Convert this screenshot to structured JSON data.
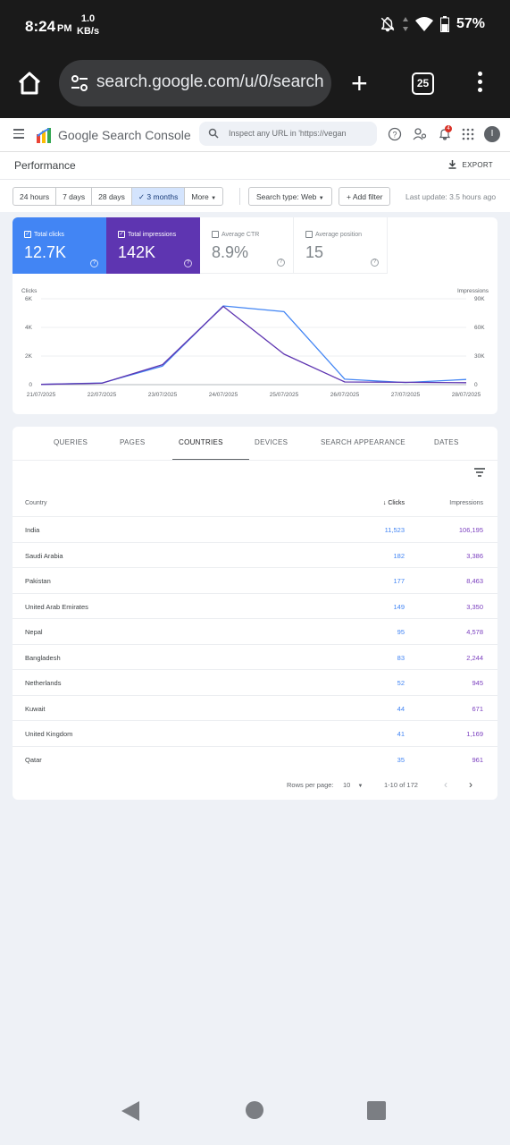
{
  "status_bar": {
    "time": "8:24",
    "ampm": "PM",
    "net_speed_value": "1.0",
    "net_speed_unit": "KB/s",
    "battery": "57%"
  },
  "browser": {
    "url": "search.google.com/u/0/search",
    "tab_count": "25"
  },
  "gsc": {
    "title": "Google Search Console",
    "inspect_placeholder": "Inspect any URL in 'https://vegan",
    "notification_count": "4",
    "avatar_letter": "I"
  },
  "performance": {
    "title": "Performance",
    "export_label": "EXPORT"
  },
  "filters": {
    "ranges": [
      "24 hours",
      "7 days",
      "28 days",
      "3 months",
      "More"
    ],
    "active_range": "3 months",
    "search_type": "Search type: Web",
    "add_filter": "Add filter",
    "last_update": "Last update: 3.5 hours ago"
  },
  "metrics": [
    {
      "label": "Total clicks",
      "value": "12.7K",
      "checked": true,
      "color": "#4285f4"
    },
    {
      "label": "Total impressions",
      "value": "142K",
      "checked": true,
      "color": "#5e35b1"
    },
    {
      "label": "Average CTR",
      "value": "8.9%",
      "checked": false,
      "color": "#ffffff"
    },
    {
      "label": "Average position",
      "value": "15",
      "checked": false,
      "color": "#ffffff"
    }
  ],
  "chart_data": {
    "type": "line",
    "x": [
      "21/07/2025",
      "22/07/2025",
      "23/07/2025",
      "24/07/2025",
      "25/07/2025",
      "26/07/2025",
      "27/07/2025",
      "28/07/2025"
    ],
    "series": [
      {
        "name": "Clicks",
        "axis": "left",
        "color": "#4285f4",
        "values": [
          20,
          110,
          1300,
          5500,
          5100,
          380,
          150,
          360
        ]
      },
      {
        "name": "Impressions",
        "axis": "right",
        "color": "#5e35b1",
        "values": [
          300,
          1500,
          21000,
          82000,
          32000,
          2800,
          2400,
          2100
        ]
      }
    ],
    "left_axis_label": "Clicks",
    "right_axis_label": "Impressions",
    "left_ticks": [
      "6K",
      "4K",
      "2K",
      "0"
    ],
    "right_ticks": [
      "90K",
      "60K",
      "30K",
      "0"
    ],
    "left_ylim": [
      0,
      6000
    ],
    "right_ylim": [
      0,
      90000
    ],
    "grid": true
  },
  "tabs": [
    "QUERIES",
    "PAGES",
    "COUNTRIES",
    "DEVICES",
    "SEARCH APPEARANCE",
    "DATES"
  ],
  "active_tab": "COUNTRIES",
  "table": {
    "headers": {
      "country": "Country",
      "clicks": "Clicks",
      "impressions": "Impressions"
    },
    "rows": [
      {
        "country": "India",
        "clicks": "11,523",
        "impressions": "106,195"
      },
      {
        "country": "Saudi Arabia",
        "clicks": "182",
        "impressions": "3,386"
      },
      {
        "country": "Pakistan",
        "clicks": "177",
        "impressions": "8,463"
      },
      {
        "country": "United Arab Emirates",
        "clicks": "149",
        "impressions": "3,350"
      },
      {
        "country": "Nepal",
        "clicks": "95",
        "impressions": "4,578"
      },
      {
        "country": "Bangladesh",
        "clicks": "83",
        "impressions": "2,244"
      },
      {
        "country": "Netherlands",
        "clicks": "52",
        "impressions": "945"
      },
      {
        "country": "Kuwait",
        "clicks": "44",
        "impressions": "671"
      },
      {
        "country": "United Kingdom",
        "clicks": "41",
        "impressions": "1,169"
      },
      {
        "country": "Qatar",
        "clicks": "35",
        "impressions": "961"
      }
    ],
    "rows_per_page_label": "Rows per page:",
    "rows_per_page": "10",
    "range": "1-10 of 172"
  }
}
